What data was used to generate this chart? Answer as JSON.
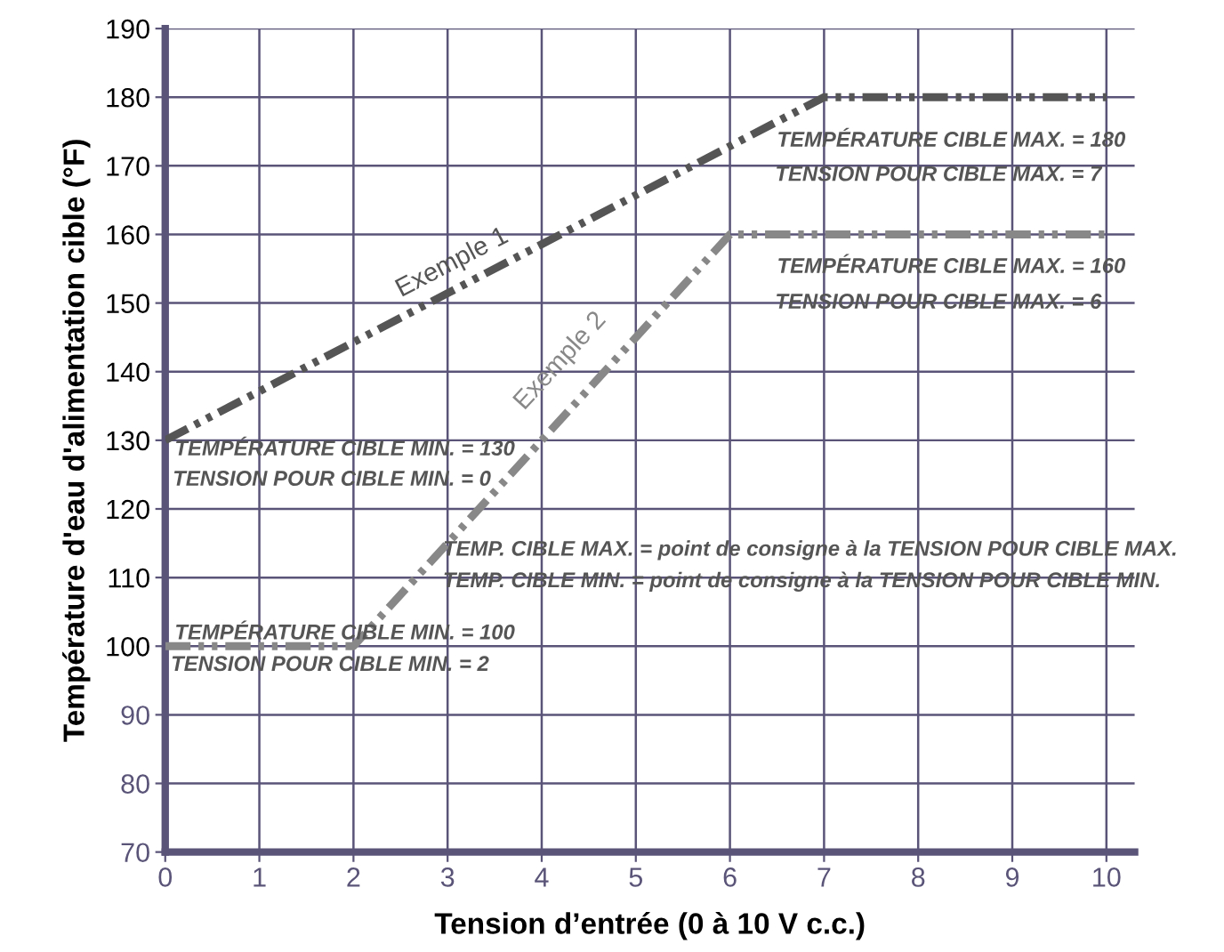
{
  "chart_data": {
    "type": "line",
    "xlabel": "Tension d’entrée (0 à 10 V c.c.)",
    "ylabel": "Température d'eau d'alimentation cible (°F)",
    "series": [
      {
        "name": "Exemple 1",
        "color": "#555555",
        "x": [
          0,
          7,
          10
        ],
        "values": [
          130,
          180,
          180
        ]
      },
      {
        "name": "Exemple 2",
        "color": "#888888",
        "x": [
          0,
          2,
          6,
          10
        ],
        "values": [
          100,
          100,
          160,
          160
        ]
      }
    ],
    "annotations": [
      "TEMPÉRATURE CIBLE MAX. = 180",
      "TENSION POUR CIBLE MAX. = 7",
      "TEMPÉRATURE CIBLE MAX. = 160",
      "TENSION POUR CIBLE MAX. = 6",
      "TEMPÉRATURE CIBLE MIN. = 130",
      "TENSION POUR CIBLE MIN. = 0",
      "TEMP. CIBLE MAX. = point de consigne à la TENSION POUR CIBLE MAX.",
      "TEMP. CIBLE MIN. = point de consigne à la TENSION POUR CIBLE MIN.",
      "TEMPÉRATURE CIBLE MIN. = 100",
      "TENSION POUR CIBLE MIN. = 2"
    ],
    "xlim": [
      0,
      10.3
    ],
    "ylim": [
      70,
      190
    ],
    "xticks": [
      0,
      1,
      2,
      3,
      4,
      5,
      6,
      7,
      8,
      9,
      10
    ],
    "yticks": [
      70,
      80,
      90,
      100,
      110,
      120,
      130,
      140,
      150,
      160,
      170,
      180,
      190
    ],
    "grid": true,
    "line_style": "dashed",
    "marker": "none"
  }
}
